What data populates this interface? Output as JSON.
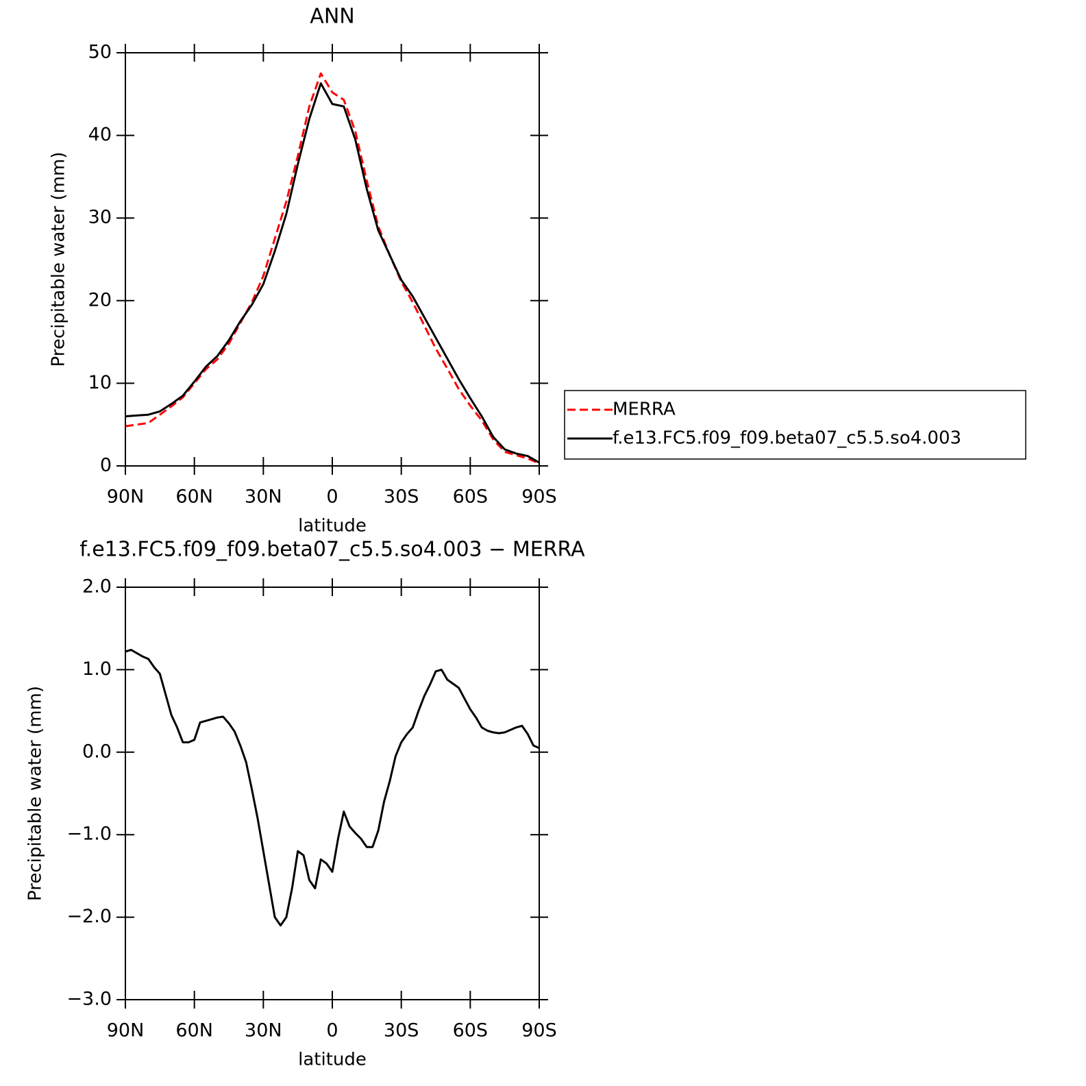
{
  "chart_data": [
    {
      "type": "line",
      "title": "ANN",
      "xlabel": "latitude",
      "ylabel": "Precipitable water (mm)",
      "x": [
        90,
        85,
        80,
        75,
        70,
        65,
        60,
        55,
        50,
        45,
        40,
        35,
        30,
        25,
        20,
        15,
        10,
        5,
        0,
        -5,
        -10,
        -15,
        -20,
        -25,
        -30,
        -35,
        -40,
        -45,
        -50,
        -55,
        -60,
        -65,
        -70,
        -75,
        -80,
        -85,
        -90
      ],
      "series": [
        {
          "name": "MERRA",
          "color": "#ff0000",
          "line_style": "dashed",
          "values": [
            4.8,
            5.0,
            5.2,
            6.2,
            7.2,
            8.3,
            10.0,
            11.7,
            12.9,
            14.8,
            17.3,
            19.8,
            23.0,
            27.5,
            32.0,
            37.5,
            43.5,
            47.5,
            45.2,
            44.3,
            40.5,
            34.5,
            29.0,
            25.5,
            22.3,
            19.8,
            17.0,
            14.2,
            11.8,
            9.3,
            7.3,
            5.5,
            3.2,
            1.7,
            1.3,
            0.9,
            0.3
          ]
        },
        {
          "name": "f.e13.FC5.f09_f09.beta07_c5.5.so4.003",
          "color": "#000000",
          "line_style": "solid",
          "values": [
            6.0,
            6.1,
            6.2,
            6.6,
            7.5,
            8.5,
            10.2,
            12.0,
            13.3,
            15.2,
            17.5,
            19.5,
            22.0,
            26.0,
            30.5,
            36.5,
            42.0,
            46.3,
            43.8,
            43.5,
            39.5,
            33.5,
            28.5,
            25.5,
            22.5,
            20.5,
            18.0,
            15.5,
            13.0,
            10.5,
            8.2,
            6.0,
            3.5,
            2.0,
            1.5,
            1.2,
            0.4
          ]
        }
      ],
      "xlim": [
        90,
        -90
      ],
      "xticks": [
        {
          "value": 90,
          "label": "90N"
        },
        {
          "value": 60,
          "label": "60N"
        },
        {
          "value": 30,
          "label": "30N"
        },
        0,
        {
          "value": -30,
          "label": "30S"
        },
        {
          "value": -60,
          "label": "60S"
        },
        {
          "value": -90,
          "label": "90S"
        }
      ],
      "ylim": [
        0,
        50
      ],
      "yticks": [
        0,
        10,
        20,
        30,
        40,
        50
      ],
      "legend": "right"
    },
    {
      "type": "line",
      "title": "f.e13.FC5.f09_f09.beta07_c5.5.so4.003 − MERRA",
      "xlabel": "latitude",
      "ylabel": "Precipitable water (mm)",
      "x": [
        90,
        87.5,
        85,
        82.5,
        80,
        77.5,
        75,
        72.5,
        70,
        67.5,
        65,
        62.5,
        60,
        57.5,
        55,
        52.5,
        50,
        47.5,
        45,
        42.5,
        40,
        37.5,
        35,
        32.5,
        30,
        27.5,
        25,
        22.5,
        20,
        17.5,
        15,
        12.5,
        10,
        7.5,
        5,
        2.5,
        0,
        -2.5,
        -5,
        -7.5,
        -10,
        -12.5,
        -15,
        -17.5,
        -20,
        -22.5,
        -25,
        -27.5,
        -30,
        -32.5,
        -35,
        -37.5,
        -40,
        -42.5,
        -45,
        -47.5,
        -50,
        -52.5,
        -55,
        -57.5,
        -60,
        -62.5,
        -65,
        -67.5,
        -70,
        -72.5,
        -75,
        -77.5,
        -80,
        -82.5,
        -85,
        -87.5,
        -90
      ],
      "series": [
        {
          "color": "#000000",
          "line_style": "solid",
          "values": [
            1.22,
            1.24,
            1.2,
            1.16,
            1.13,
            1.03,
            0.95,
            0.7,
            0.45,
            0.3,
            0.12,
            0.12,
            0.15,
            0.36,
            0.38,
            0.4,
            0.42,
            0.43,
            0.35,
            0.25,
            0.08,
            -0.12,
            -0.45,
            -0.8,
            -1.2,
            -1.6,
            -2.0,
            -2.1,
            -2.0,
            -1.65,
            -1.2,
            -1.25,
            -1.55,
            -1.65,
            -1.3,
            -1.35,
            -1.45,
            -1.05,
            -0.72,
            -0.9,
            -0.98,
            -1.05,
            -1.15,
            -1.15,
            -0.95,
            -0.6,
            -0.35,
            -0.05,
            0.12,
            0.22,
            0.3,
            0.5,
            0.68,
            0.82,
            0.98,
            1.0,
            0.88,
            0.83,
            0.78,
            0.65,
            0.52,
            0.42,
            0.3,
            0.26,
            0.24,
            0.23,
            0.24,
            0.27,
            0.3,
            0.32,
            0.22,
            0.08,
            0.05
          ]
        }
      ],
      "xlim": [
        90,
        -90
      ],
      "xticks": [
        {
          "value": 90,
          "label": "90N"
        },
        {
          "value": 60,
          "label": "60N"
        },
        {
          "value": 30,
          "label": "30N"
        },
        0,
        {
          "value": -30,
          "label": "30S"
        },
        {
          "value": -60,
          "label": "60S"
        },
        {
          "value": -90,
          "label": "90S"
        }
      ],
      "ylim": [
        -3,
        2
      ],
      "yticks": [
        {
          "value": -3,
          "label": "−3.0"
        },
        {
          "value": -2,
          "label": "−2.0"
        },
        {
          "value": -1,
          "label": "−1.0"
        },
        {
          "value": 0,
          "label": "0.0"
        },
        {
          "value": 1,
          "label": "1.0"
        },
        {
          "value": 2,
          "label": "2.0"
        }
      ]
    }
  ]
}
